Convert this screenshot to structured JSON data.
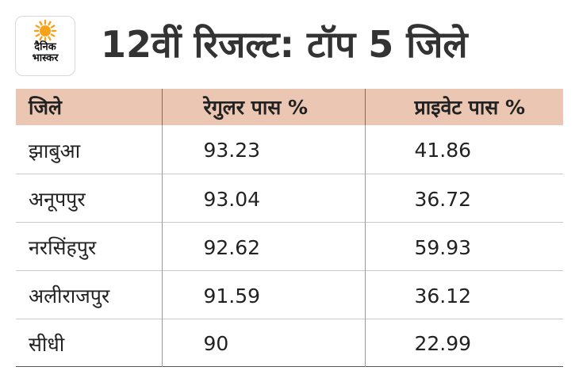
{
  "brand": {
    "logo_line1": "दैनिक",
    "logo_line2": "भास्कर",
    "sun_color": "#f7a21b"
  },
  "title": "12वीं रिजल्ट: टॉप 5 जिले",
  "table": {
    "header_bg": "#ebc6b2",
    "headers": [
      "जिले",
      "रेगुलर पास %",
      "प्राइवेट पास %"
    ],
    "rows": [
      [
        "झाबुआ",
        "93.23",
        "41.86"
      ],
      [
        "अनूपपुर",
        "93.04",
        "36.72"
      ],
      [
        "नरसिंहपुर",
        "92.62",
        "59.93"
      ],
      [
        "अलीराजपुर",
        "91.59",
        "36.12"
      ],
      [
        "सीधी",
        "90",
        "22.99"
      ]
    ]
  }
}
